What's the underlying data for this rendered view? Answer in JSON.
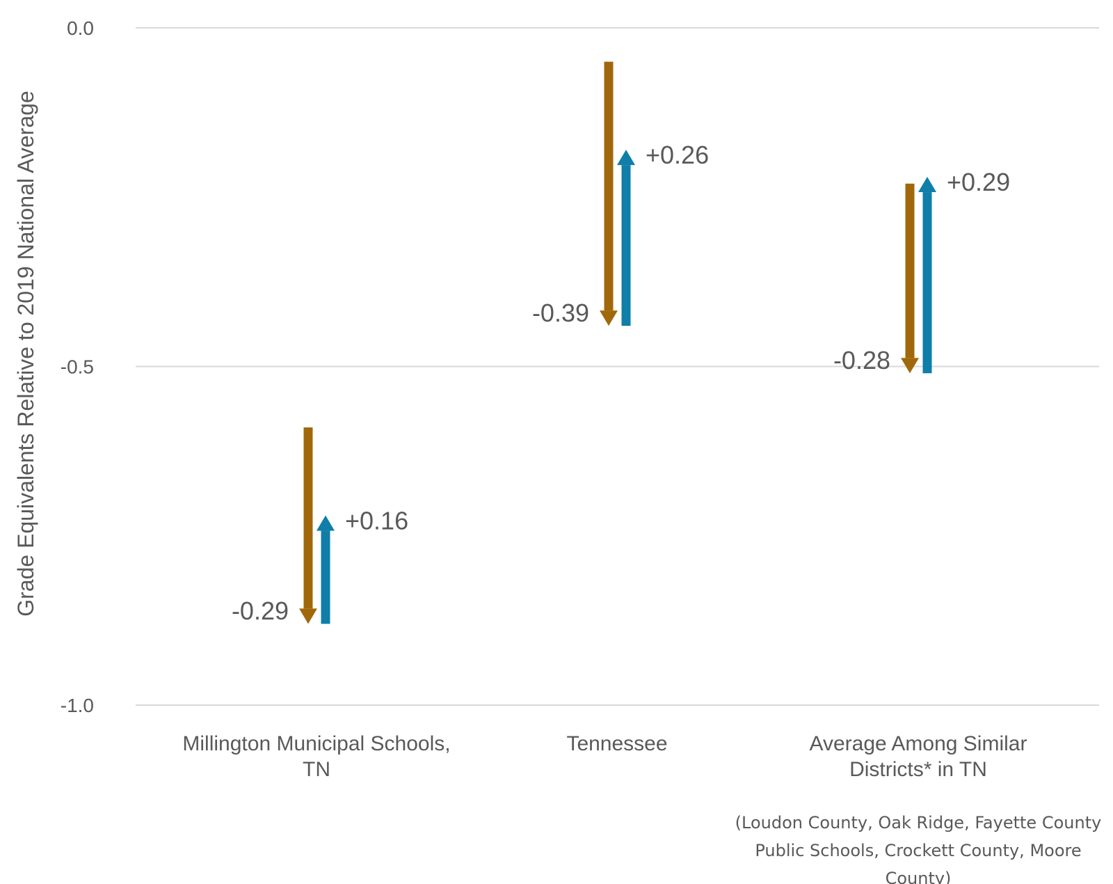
{
  "chart_data": {
    "type": "arrow",
    "ylabel": "Grade Equivalents Relative to 2019 National Average",
    "ylim": [
      -1.0,
      0.0
    ],
    "yticks": [
      0.0,
      -0.5,
      -1.0
    ],
    "ytick_labels": [
      "0.0",
      "-0.5",
      "-1.0"
    ],
    "grid": true,
    "categories": [
      "Millington Municipal Schools, TN",
      "Tennessee",
      "Average Among Similar Districts* in TN"
    ],
    "category_lines": [
      [
        "Millington Municipal Schools,",
        "TN"
      ],
      [
        "Tennessee"
      ],
      [
        "Average Among Similar",
        "Districts* in TN"
      ]
    ],
    "series": [
      {
        "color": "#a0680a",
        "start": [
          -0.59,
          -0.05,
          -0.23
        ],
        "change": [
          -0.29,
          -0.39,
          -0.28
        ],
        "labels": [
          "-0.29",
          "-0.39",
          "-0.28"
        ]
      },
      {
        "color": "#0f7ea8",
        "start": [
          -0.88,
          -0.44,
          -0.51
        ],
        "change": [
          0.16,
          0.26,
          0.29
        ],
        "labels": [
          "+0.16",
          "+0.26",
          "+0.29"
        ]
      }
    ],
    "footnote_lines": [
      "(Loudon County, Oak Ridge, Fayette County",
      "Public Schools, Crockett County, Moore",
      "County)"
    ]
  }
}
